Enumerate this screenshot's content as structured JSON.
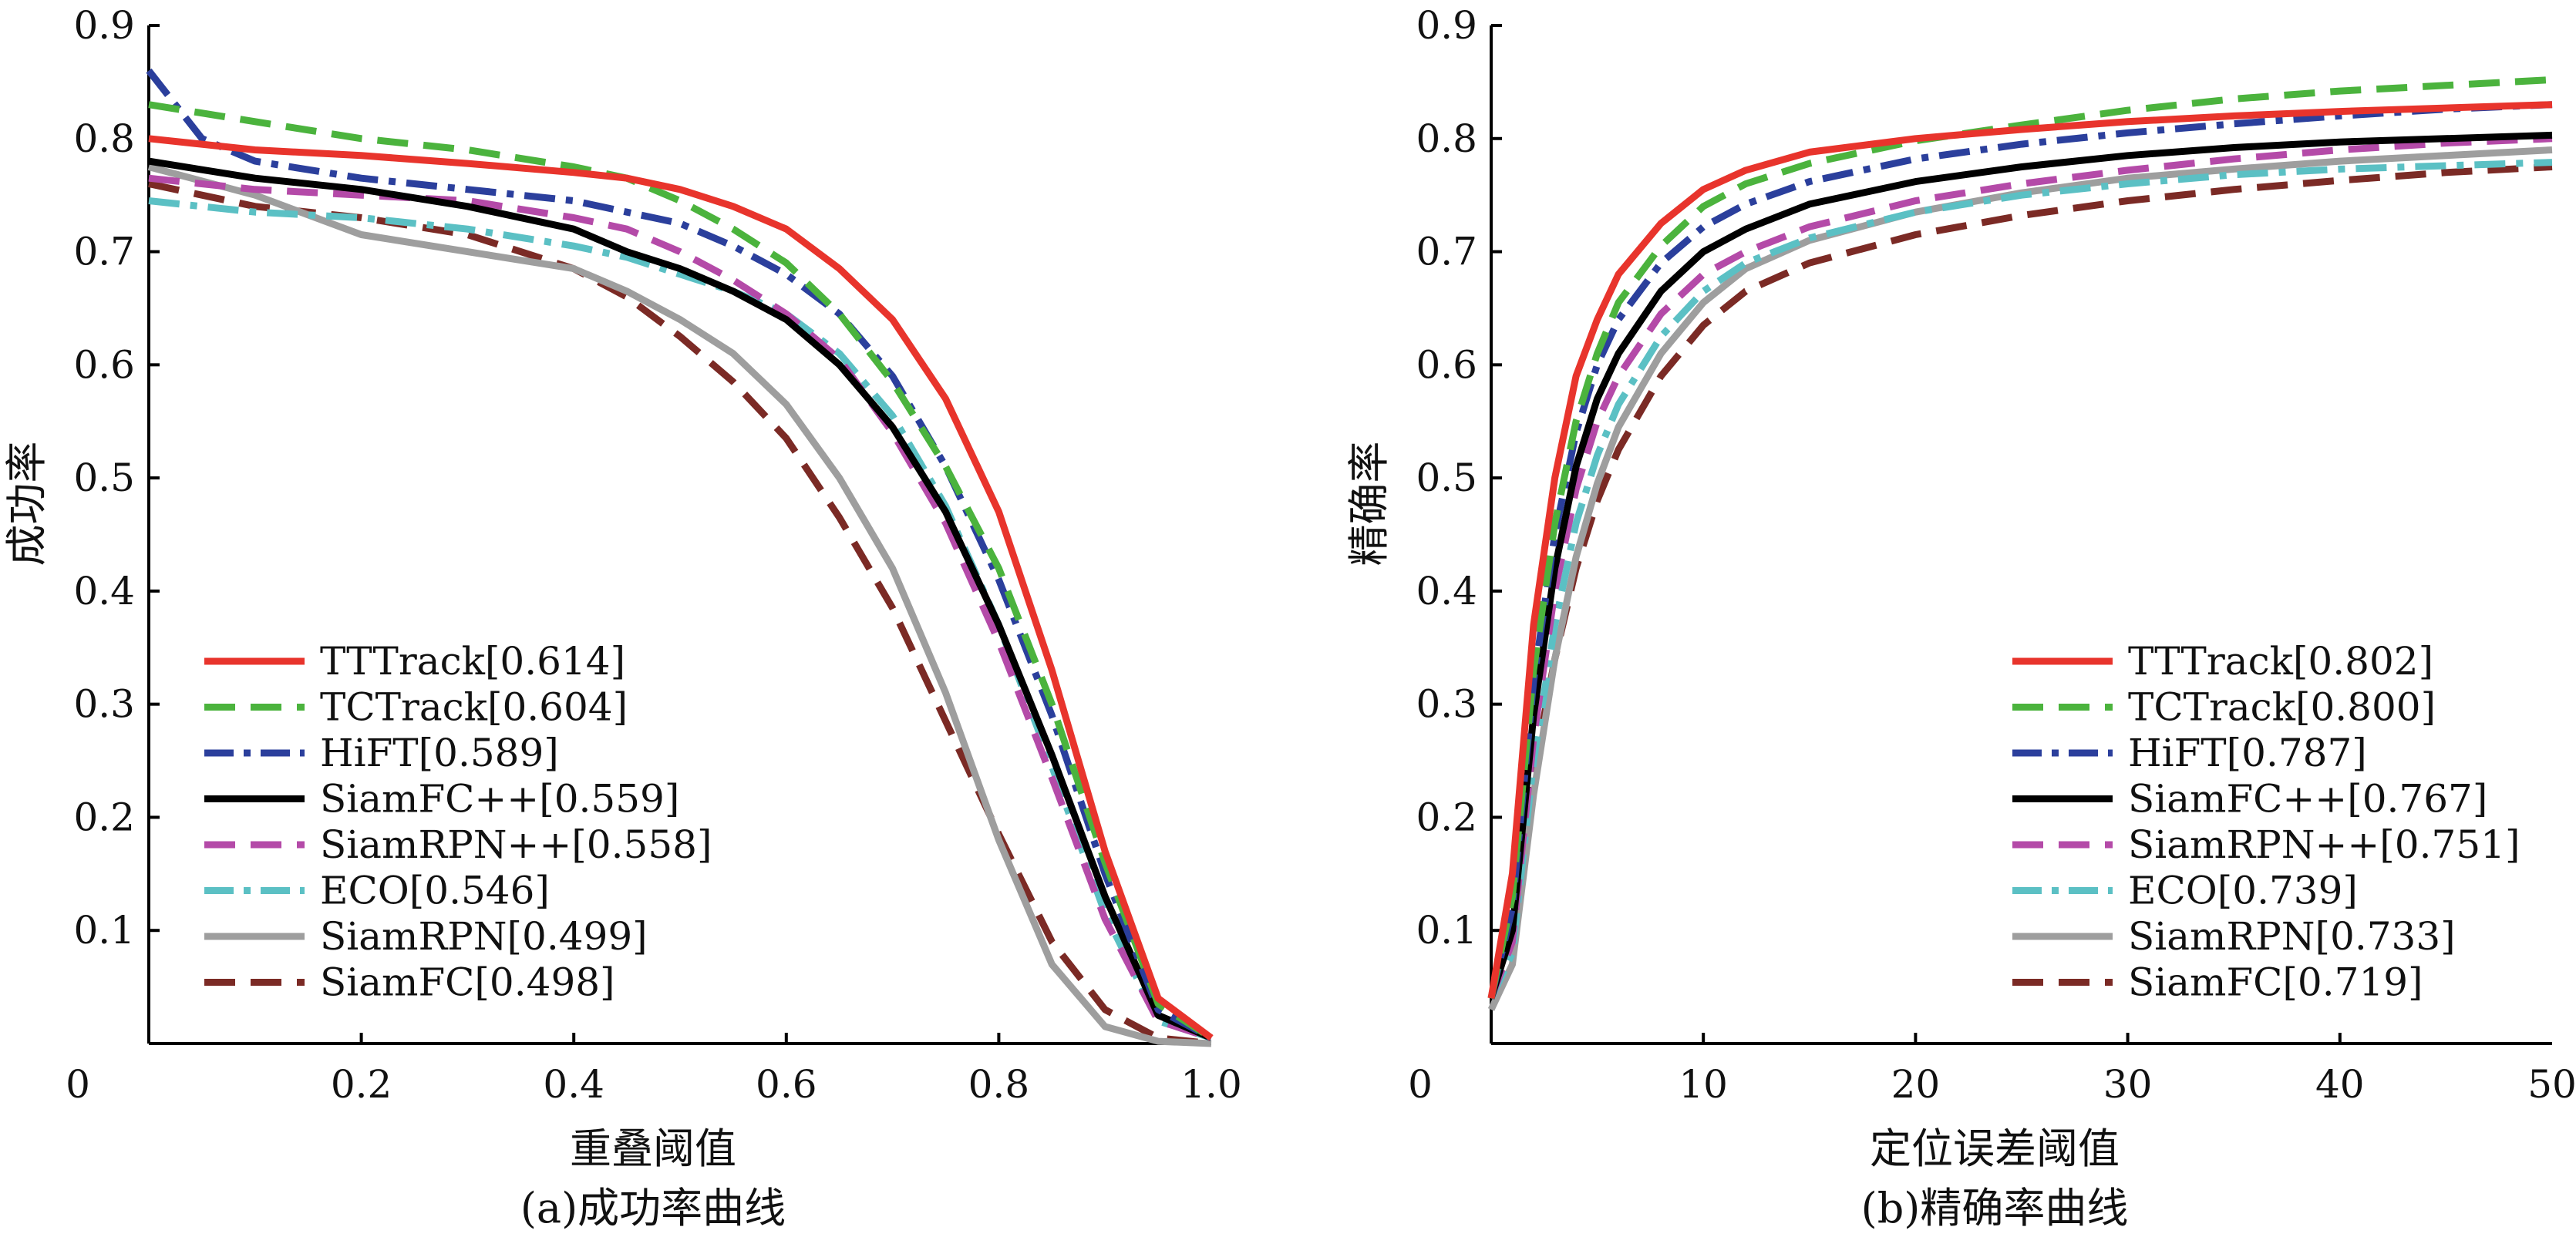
{
  "chart_data": [
    {
      "type": "line",
      "caption": "(a)成功率曲线",
      "xlabel": "重叠阈值",
      "ylabel": "成功率",
      "xlim": [
        0,
        1.0
      ],
      "ylim": [
        0,
        0.9
      ],
      "xticks": [
        "0",
        "0.2",
        "0.4",
        "0.6",
        "0.8",
        "1.0"
      ],
      "yticks": [
        "0.1",
        "0.2",
        "0.3",
        "0.4",
        "0.5",
        "0.6",
        "0.7",
        "0.8",
        "0.9"
      ],
      "legend_position": "bottom-left",
      "series": [
        {
          "name": "TTTrack[0.614]",
          "color": "#e8342c",
          "dash": "solid",
          "x": [
            0,
            0.1,
            0.2,
            0.3,
            0.4,
            0.45,
            0.5,
            0.55,
            0.6,
            0.65,
            0.7,
            0.75,
            0.8,
            0.85,
            0.9,
            0.95,
            1.0
          ],
          "y": [
            0.8,
            0.79,
            0.785,
            0.778,
            0.77,
            0.765,
            0.755,
            0.74,
            0.72,
            0.685,
            0.64,
            0.57,
            0.47,
            0.33,
            0.17,
            0.04,
            0.005
          ]
        },
        {
          "name": "TCTrack[0.604]",
          "color": "#4bb33d",
          "dash": "dash",
          "x": [
            0,
            0.1,
            0.2,
            0.3,
            0.4,
            0.45,
            0.5,
            0.55,
            0.6,
            0.65,
            0.7,
            0.75,
            0.8,
            0.85,
            0.9,
            0.95,
            1.0
          ],
          "y": [
            0.83,
            0.815,
            0.8,
            0.79,
            0.775,
            0.765,
            0.745,
            0.72,
            0.69,
            0.645,
            0.585,
            0.51,
            0.42,
            0.3,
            0.16,
            0.035,
            0.005
          ]
        },
        {
          "name": "HiFT[0.589]",
          "color": "#2b3f9c",
          "dash": "dashdot",
          "x": [
            0,
            0.05,
            0.1,
            0.2,
            0.3,
            0.4,
            0.45,
            0.5,
            0.55,
            0.6,
            0.65,
            0.7,
            0.75,
            0.8,
            0.85,
            0.9,
            0.95,
            1.0
          ],
          "y": [
            0.86,
            0.8,
            0.78,
            0.765,
            0.755,
            0.745,
            0.735,
            0.725,
            0.705,
            0.68,
            0.645,
            0.59,
            0.51,
            0.41,
            0.29,
            0.15,
            0.03,
            0.005
          ]
        },
        {
          "name": "SiamFC++[0.559]",
          "color": "#000000",
          "dash": "solid",
          "x": [
            0,
            0.1,
            0.2,
            0.3,
            0.4,
            0.45,
            0.5,
            0.55,
            0.6,
            0.65,
            0.7,
            0.75,
            0.8,
            0.85,
            0.9,
            0.95,
            1.0
          ],
          "y": [
            0.78,
            0.765,
            0.755,
            0.74,
            0.72,
            0.7,
            0.685,
            0.665,
            0.64,
            0.6,
            0.545,
            0.47,
            0.37,
            0.255,
            0.13,
            0.025,
            0.005
          ]
        },
        {
          "name": "SiamRPN++[0.558]",
          "color": "#b44aa8",
          "dash": "dash",
          "x": [
            0,
            0.1,
            0.2,
            0.3,
            0.4,
            0.45,
            0.5,
            0.55,
            0.6,
            0.65,
            0.7,
            0.75,
            0.8,
            0.85,
            0.9,
            0.95,
            1.0
          ],
          "y": [
            0.765,
            0.755,
            0.75,
            0.745,
            0.73,
            0.72,
            0.7,
            0.675,
            0.645,
            0.605,
            0.54,
            0.46,
            0.355,
            0.235,
            0.11,
            0.02,
            0.005
          ]
        },
        {
          "name": "ECO[0.546]",
          "color": "#5bc0c4",
          "dash": "dashdot",
          "x": [
            0,
            0.1,
            0.2,
            0.3,
            0.4,
            0.45,
            0.5,
            0.55,
            0.6,
            0.65,
            0.7,
            0.75,
            0.8,
            0.85,
            0.9,
            0.95,
            1.0
          ],
          "y": [
            0.745,
            0.735,
            0.73,
            0.72,
            0.705,
            0.695,
            0.68,
            0.665,
            0.645,
            0.61,
            0.555,
            0.475,
            0.37,
            0.245,
            0.115,
            0.02,
            0.005
          ]
        },
        {
          "name": "SiamRPN[0.499]",
          "color": "#9e9e9e",
          "dash": "solid",
          "x": [
            0,
            0.1,
            0.2,
            0.3,
            0.4,
            0.45,
            0.5,
            0.55,
            0.6,
            0.65,
            0.7,
            0.75,
            0.8,
            0.85,
            0.9,
            0.95,
            1.0
          ],
          "y": [
            0.775,
            0.75,
            0.715,
            0.7,
            0.685,
            0.665,
            0.64,
            0.61,
            0.565,
            0.5,
            0.42,
            0.31,
            0.18,
            0.07,
            0.015,
            0.002,
            0.0
          ]
        },
        {
          "name": "SiamFC[0.498]",
          "color": "#7b2a25",
          "dash": "dash",
          "x": [
            0,
            0.1,
            0.2,
            0.3,
            0.4,
            0.45,
            0.5,
            0.55,
            0.6,
            0.65,
            0.7,
            0.75,
            0.8,
            0.85,
            0.9,
            0.95,
            1.0
          ],
          "y": [
            0.76,
            0.74,
            0.73,
            0.715,
            0.685,
            0.66,
            0.625,
            0.585,
            0.535,
            0.465,
            0.385,
            0.285,
            0.185,
            0.09,
            0.03,
            0.005,
            0.0
          ]
        }
      ]
    },
    {
      "type": "line",
      "caption": "(b)精确率曲线",
      "xlabel": "定位误差阈值",
      "ylabel": "精确率",
      "xlim": [
        0,
        50
      ],
      "ylim": [
        0,
        0.9
      ],
      "xticks": [
        "0",
        "10",
        "20",
        "30",
        "40",
        "50"
      ],
      "yticks": [
        "0.1",
        "0.2",
        "0.3",
        "0.4",
        "0.5",
        "0.6",
        "0.7",
        "0.8",
        "0.9"
      ],
      "legend_position": "bottom-right",
      "series": [
        {
          "name": "TTTrack[0.802]",
          "color": "#e8342c",
          "dash": "solid",
          "x": [
            0,
            1,
            2,
            3,
            4,
            5,
            6,
            8,
            10,
            12,
            15,
            20,
            25,
            30,
            35,
            40,
            45,
            50
          ],
          "y": [
            0.04,
            0.15,
            0.37,
            0.5,
            0.59,
            0.64,
            0.68,
            0.725,
            0.755,
            0.772,
            0.788,
            0.8,
            0.808,
            0.815,
            0.82,
            0.824,
            0.827,
            0.83
          ]
        },
        {
          "name": "TCTrack[0.800]",
          "color": "#4bb33d",
          "dash": "dash",
          "x": [
            0,
            1,
            2,
            3,
            4,
            5,
            6,
            8,
            10,
            12,
            15,
            20,
            25,
            30,
            35,
            40,
            45,
            50
          ],
          "y": [
            0.04,
            0.13,
            0.33,
            0.46,
            0.55,
            0.61,
            0.655,
            0.705,
            0.74,
            0.76,
            0.778,
            0.798,
            0.812,
            0.825,
            0.835,
            0.842,
            0.847,
            0.852
          ]
        },
        {
          "name": "HiFT[0.787]",
          "color": "#2b3f9c",
          "dash": "dashdot",
          "x": [
            0,
            1,
            2,
            3,
            4,
            5,
            6,
            8,
            10,
            12,
            15,
            20,
            25,
            30,
            35,
            40,
            45,
            50
          ],
          "y": [
            0.04,
            0.12,
            0.32,
            0.45,
            0.54,
            0.6,
            0.64,
            0.69,
            0.722,
            0.742,
            0.762,
            0.782,
            0.795,
            0.805,
            0.813,
            0.82,
            0.826,
            0.83
          ]
        },
        {
          "name": "SiamFC++[0.767]",
          "color": "#000000",
          "dash": "solid",
          "x": [
            0,
            1,
            2,
            3,
            4,
            5,
            6,
            8,
            10,
            12,
            15,
            20,
            25,
            30,
            35,
            40,
            45,
            50
          ],
          "y": [
            0.04,
            0.1,
            0.29,
            0.42,
            0.51,
            0.57,
            0.61,
            0.665,
            0.7,
            0.72,
            0.742,
            0.762,
            0.775,
            0.785,
            0.792,
            0.797,
            0.8,
            0.803
          ]
        },
        {
          "name": "SiamRPN++[0.751]",
          "color": "#b44aa8",
          "dash": "dash",
          "x": [
            0,
            1,
            2,
            3,
            4,
            5,
            6,
            8,
            10,
            12,
            15,
            20,
            25,
            30,
            35,
            40,
            45,
            50
          ],
          "y": [
            0.04,
            0.09,
            0.27,
            0.4,
            0.49,
            0.55,
            0.59,
            0.645,
            0.68,
            0.7,
            0.722,
            0.745,
            0.76,
            0.772,
            0.782,
            0.79,
            0.796,
            0.8
          ]
        },
        {
          "name": "ECO[0.739]",
          "color": "#5bc0c4",
          "dash": "dashdot",
          "x": [
            0,
            1,
            2,
            3,
            4,
            5,
            6,
            8,
            10,
            12,
            15,
            20,
            25,
            30,
            35,
            40,
            45,
            50
          ],
          "y": [
            0.04,
            0.08,
            0.25,
            0.37,
            0.46,
            0.52,
            0.565,
            0.625,
            0.665,
            0.69,
            0.712,
            0.735,
            0.75,
            0.76,
            0.768,
            0.773,
            0.776,
            0.779
          ]
        },
        {
          "name": "SiamRPN[0.733]",
          "color": "#9e9e9e",
          "dash": "solid",
          "x": [
            0,
            1,
            2,
            3,
            4,
            5,
            6,
            8,
            10,
            12,
            15,
            20,
            25,
            30,
            35,
            40,
            45,
            50
          ],
          "y": [
            0.03,
            0.07,
            0.22,
            0.34,
            0.43,
            0.495,
            0.545,
            0.61,
            0.655,
            0.685,
            0.71,
            0.735,
            0.752,
            0.765,
            0.773,
            0.78,
            0.785,
            0.79
          ]
        },
        {
          "name": "SiamFC[0.719]",
          "color": "#7b2a25",
          "dash": "dash",
          "x": [
            0,
            1,
            2,
            3,
            4,
            5,
            6,
            8,
            10,
            12,
            15,
            20,
            25,
            30,
            35,
            40,
            45,
            50
          ],
          "y": [
            0.04,
            0.1,
            0.24,
            0.34,
            0.42,
            0.48,
            0.525,
            0.59,
            0.635,
            0.665,
            0.69,
            0.715,
            0.732,
            0.745,
            0.755,
            0.763,
            0.77,
            0.775
          ]
        }
      ]
    }
  ]
}
